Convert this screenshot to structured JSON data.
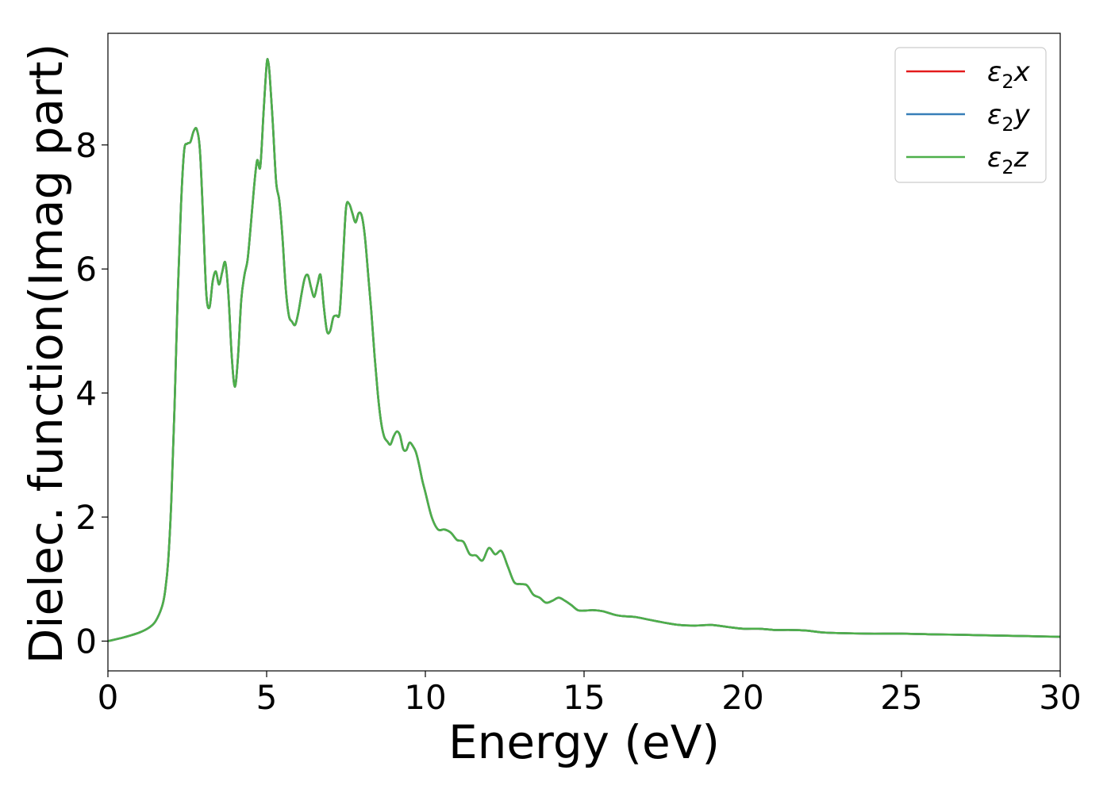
{
  "chart_data": {
    "type": "line",
    "xlabel": "Energy (eV)",
    "ylabel": "Dielec. function(Imag part)",
    "xlim": [
      0,
      30
    ],
    "ylim": [
      -0.48,
      9.8
    ],
    "xticks": [
      0,
      5,
      10,
      15,
      20,
      25,
      30
    ],
    "xtick_labels": [
      "0",
      "5",
      "10",
      "15",
      "20",
      "25",
      "30"
    ],
    "yticks": [
      0,
      2,
      4,
      6,
      8
    ],
    "ytick_labels": [
      "0",
      "2",
      "4",
      "6",
      "8"
    ],
    "grid": false,
    "legend_position": "top-right",
    "series": [
      {
        "legend_base": "ε",
        "legend_sub": "2",
        "legend_suffix": "x",
        "color": "#e41a1c",
        "x": [
          0,
          0.5,
          1.0,
          1.3,
          1.5,
          1.7,
          1.8,
          1.9,
          2.0,
          2.1,
          2.2,
          2.3,
          2.4,
          2.5,
          2.6,
          2.7,
          2.8,
          2.9,
          3.0,
          3.1,
          3.2,
          3.3,
          3.4,
          3.5,
          3.6,
          3.7,
          3.8,
          3.9,
          4.0,
          4.1,
          4.2,
          4.3,
          4.4,
          4.5,
          4.6,
          4.7,
          4.8,
          4.9,
          5.0,
          5.05,
          5.1,
          5.2,
          5.3,
          5.4,
          5.5,
          5.6,
          5.7,
          5.8,
          5.9,
          6.0,
          6.1,
          6.2,
          6.3,
          6.4,
          6.5,
          6.6,
          6.7,
          6.8,
          6.9,
          7.0,
          7.1,
          7.2,
          7.3,
          7.4,
          7.5,
          7.6,
          7.7,
          7.8,
          7.9,
          8.0,
          8.1,
          8.2,
          8.3,
          8.4,
          8.5,
          8.6,
          8.7,
          8.8,
          8.9,
          9.0,
          9.1,
          9.2,
          9.3,
          9.4,
          9.5,
          9.6,
          9.7,
          9.8,
          9.9,
          10.0,
          10.2,
          10.4,
          10.6,
          10.8,
          11.0,
          11.2,
          11.4,
          11.6,
          11.8,
          12.0,
          12.2,
          12.4,
          12.6,
          12.8,
          13.0,
          13.2,
          13.4,
          13.6,
          13.8,
          14.0,
          14.2,
          14.4,
          14.6,
          14.8,
          15.0,
          15.3,
          15.6,
          16.0,
          16.3,
          16.6,
          17.0,
          17.5,
          18.0,
          18.5,
          19.0,
          19.5,
          20.0,
          20.5,
          21.0,
          21.5,
          22.0,
          22.5,
          23.0,
          24.0,
          25.0,
          26.0,
          27.0,
          28.0,
          29.0,
          30.0
        ],
        "y": [
          0.0,
          0.06,
          0.14,
          0.22,
          0.32,
          0.55,
          0.8,
          1.3,
          2.3,
          3.8,
          5.6,
          7.0,
          7.9,
          8.02,
          8.05,
          8.22,
          8.25,
          7.9,
          6.8,
          5.6,
          5.38,
          5.8,
          5.96,
          5.75,
          5.95,
          6.1,
          5.55,
          4.6,
          4.1,
          4.6,
          5.5,
          5.9,
          6.15,
          6.7,
          7.3,
          7.75,
          7.65,
          8.5,
          9.3,
          9.34,
          9.1,
          8.3,
          7.4,
          7.1,
          6.5,
          5.7,
          5.25,
          5.15,
          5.1,
          5.3,
          5.6,
          5.85,
          5.9,
          5.7,
          5.55,
          5.75,
          5.9,
          5.4,
          5.0,
          5.0,
          5.22,
          5.25,
          5.3,
          6.1,
          6.98,
          7.05,
          6.9,
          6.75,
          6.9,
          6.85,
          6.5,
          5.9,
          5.3,
          4.6,
          4.0,
          3.55,
          3.3,
          3.22,
          3.17,
          3.3,
          3.38,
          3.32,
          3.1,
          3.08,
          3.2,
          3.15,
          3.05,
          2.85,
          2.6,
          2.4,
          2.0,
          1.8,
          1.8,
          1.75,
          1.63,
          1.6,
          1.4,
          1.38,
          1.3,
          1.5,
          1.4,
          1.45,
          1.2,
          0.95,
          0.92,
          0.9,
          0.75,
          0.7,
          0.62,
          0.65,
          0.7,
          0.65,
          0.58,
          0.5,
          0.49,
          0.5,
          0.48,
          0.42,
          0.4,
          0.39,
          0.35,
          0.3,
          0.26,
          0.25,
          0.26,
          0.23,
          0.2,
          0.2,
          0.18,
          0.18,
          0.17,
          0.14,
          0.13,
          0.12,
          0.12,
          0.11,
          0.1,
          0.09,
          0.08,
          0.07
        ]
      },
      {
        "legend_base": "ε",
        "legend_sub": "2",
        "legend_suffix": "y",
        "color": "#377eb8",
        "x": [
          0,
          0.5,
          1.0,
          1.3,
          1.5,
          1.7,
          1.8,
          1.9,
          2.0,
          2.1,
          2.2,
          2.3,
          2.4,
          2.5,
          2.6,
          2.7,
          2.8,
          2.9,
          3.0,
          3.1,
          3.2,
          3.3,
          3.4,
          3.5,
          3.6,
          3.7,
          3.8,
          3.9,
          4.0,
          4.1,
          4.2,
          4.3,
          4.4,
          4.5,
          4.6,
          4.7,
          4.8,
          4.9,
          5.0,
          5.05,
          5.1,
          5.2,
          5.3,
          5.4,
          5.5,
          5.6,
          5.7,
          5.8,
          5.9,
          6.0,
          6.1,
          6.2,
          6.3,
          6.4,
          6.5,
          6.6,
          6.7,
          6.8,
          6.9,
          7.0,
          7.1,
          7.2,
          7.3,
          7.4,
          7.5,
          7.6,
          7.7,
          7.8,
          7.9,
          8.0,
          8.1,
          8.2,
          8.3,
          8.4,
          8.5,
          8.6,
          8.7,
          8.8,
          8.9,
          9.0,
          9.1,
          9.2,
          9.3,
          9.4,
          9.5,
          9.6,
          9.7,
          9.8,
          9.9,
          10.0,
          10.2,
          10.4,
          10.6,
          10.8,
          11.0,
          11.2,
          11.4,
          11.6,
          11.8,
          12.0,
          12.2,
          12.4,
          12.6,
          12.8,
          13.0,
          13.2,
          13.4,
          13.6,
          13.8,
          14.0,
          14.2,
          14.4,
          14.6,
          14.8,
          15.0,
          15.3,
          15.6,
          16.0,
          16.3,
          16.6,
          17.0,
          17.5,
          18.0,
          18.5,
          19.0,
          19.5,
          20.0,
          20.5,
          21.0,
          21.5,
          22.0,
          22.5,
          23.0,
          24.0,
          25.0,
          26.0,
          27.0,
          28.0,
          29.0,
          30.0
        ],
        "y": [
          0.0,
          0.06,
          0.14,
          0.22,
          0.32,
          0.55,
          0.8,
          1.3,
          2.3,
          3.8,
          5.6,
          7.0,
          7.9,
          8.02,
          8.05,
          8.22,
          8.25,
          7.9,
          6.8,
          5.6,
          5.38,
          5.8,
          5.96,
          5.75,
          5.95,
          6.1,
          5.55,
          4.6,
          4.1,
          4.6,
          5.5,
          5.9,
          6.15,
          6.7,
          7.3,
          7.75,
          7.65,
          8.5,
          9.3,
          9.34,
          9.1,
          8.3,
          7.4,
          7.1,
          6.5,
          5.7,
          5.25,
          5.15,
          5.1,
          5.3,
          5.6,
          5.85,
          5.9,
          5.7,
          5.55,
          5.75,
          5.9,
          5.4,
          5.0,
          5.0,
          5.22,
          5.25,
          5.3,
          6.1,
          6.98,
          7.05,
          6.9,
          6.75,
          6.9,
          6.85,
          6.5,
          5.9,
          5.3,
          4.6,
          4.0,
          3.55,
          3.3,
          3.22,
          3.17,
          3.3,
          3.38,
          3.32,
          3.1,
          3.08,
          3.2,
          3.15,
          3.05,
          2.85,
          2.6,
          2.4,
          2.0,
          1.8,
          1.8,
          1.75,
          1.63,
          1.6,
          1.4,
          1.38,
          1.3,
          1.5,
          1.4,
          1.45,
          1.2,
          0.95,
          0.92,
          0.9,
          0.75,
          0.7,
          0.62,
          0.65,
          0.7,
          0.65,
          0.58,
          0.5,
          0.49,
          0.5,
          0.48,
          0.42,
          0.4,
          0.39,
          0.35,
          0.3,
          0.26,
          0.25,
          0.26,
          0.23,
          0.2,
          0.2,
          0.18,
          0.18,
          0.17,
          0.14,
          0.13,
          0.12,
          0.12,
          0.11,
          0.1,
          0.09,
          0.08,
          0.07
        ]
      },
      {
        "legend_base": "ε",
        "legend_sub": "2",
        "legend_suffix": "z",
        "color": "#4daf4a",
        "x": [
          0,
          0.5,
          1.0,
          1.3,
          1.5,
          1.7,
          1.8,
          1.9,
          2.0,
          2.1,
          2.2,
          2.3,
          2.4,
          2.5,
          2.6,
          2.7,
          2.8,
          2.9,
          3.0,
          3.1,
          3.2,
          3.3,
          3.4,
          3.5,
          3.6,
          3.7,
          3.8,
          3.9,
          4.0,
          4.1,
          4.2,
          4.3,
          4.4,
          4.5,
          4.6,
          4.7,
          4.8,
          4.9,
          5.0,
          5.05,
          5.1,
          5.2,
          5.3,
          5.4,
          5.5,
          5.6,
          5.7,
          5.8,
          5.9,
          6.0,
          6.1,
          6.2,
          6.3,
          6.4,
          6.5,
          6.6,
          6.7,
          6.8,
          6.9,
          7.0,
          7.1,
          7.2,
          7.3,
          7.4,
          7.5,
          7.6,
          7.7,
          7.8,
          7.9,
          8.0,
          8.1,
          8.2,
          8.3,
          8.4,
          8.5,
          8.6,
          8.7,
          8.8,
          8.9,
          9.0,
          9.1,
          9.2,
          9.3,
          9.4,
          9.5,
          9.6,
          9.7,
          9.8,
          9.9,
          10.0,
          10.2,
          10.4,
          10.6,
          10.8,
          11.0,
          11.2,
          11.4,
          11.6,
          11.8,
          12.0,
          12.2,
          12.4,
          12.6,
          12.8,
          13.0,
          13.2,
          13.4,
          13.6,
          13.8,
          14.0,
          14.2,
          14.4,
          14.6,
          14.8,
          15.0,
          15.3,
          15.6,
          16.0,
          16.3,
          16.6,
          17.0,
          17.5,
          18.0,
          18.5,
          19.0,
          19.5,
          20.0,
          20.5,
          21.0,
          21.5,
          22.0,
          22.5,
          23.0,
          24.0,
          25.0,
          26.0,
          27.0,
          28.0,
          29.0,
          30.0
        ],
        "y": [
          0.0,
          0.06,
          0.14,
          0.22,
          0.32,
          0.55,
          0.8,
          1.3,
          2.3,
          3.8,
          5.6,
          7.0,
          7.9,
          8.02,
          8.05,
          8.22,
          8.25,
          7.9,
          6.8,
          5.6,
          5.38,
          5.8,
          5.96,
          5.75,
          5.95,
          6.1,
          5.55,
          4.6,
          4.1,
          4.6,
          5.5,
          5.9,
          6.15,
          6.7,
          7.3,
          7.75,
          7.65,
          8.5,
          9.3,
          9.34,
          9.1,
          8.3,
          7.4,
          7.1,
          6.5,
          5.7,
          5.25,
          5.15,
          5.1,
          5.3,
          5.6,
          5.85,
          5.9,
          5.7,
          5.55,
          5.75,
          5.9,
          5.4,
          5.0,
          5.0,
          5.22,
          5.25,
          5.3,
          6.1,
          6.98,
          7.05,
          6.9,
          6.75,
          6.9,
          6.85,
          6.5,
          5.9,
          5.3,
          4.6,
          4.0,
          3.55,
          3.3,
          3.22,
          3.17,
          3.3,
          3.38,
          3.32,
          3.1,
          3.08,
          3.2,
          3.15,
          3.05,
          2.85,
          2.6,
          2.4,
          2.0,
          1.8,
          1.8,
          1.75,
          1.63,
          1.6,
          1.4,
          1.38,
          1.3,
          1.5,
          1.4,
          1.45,
          1.2,
          0.95,
          0.92,
          0.9,
          0.75,
          0.7,
          0.62,
          0.65,
          0.7,
          0.65,
          0.58,
          0.5,
          0.49,
          0.5,
          0.48,
          0.42,
          0.4,
          0.39,
          0.35,
          0.3,
          0.26,
          0.25,
          0.26,
          0.23,
          0.2,
          0.2,
          0.18,
          0.18,
          0.17,
          0.14,
          0.13,
          0.12,
          0.12,
          0.11,
          0.1,
          0.09,
          0.08,
          0.07
        ]
      }
    ]
  }
}
